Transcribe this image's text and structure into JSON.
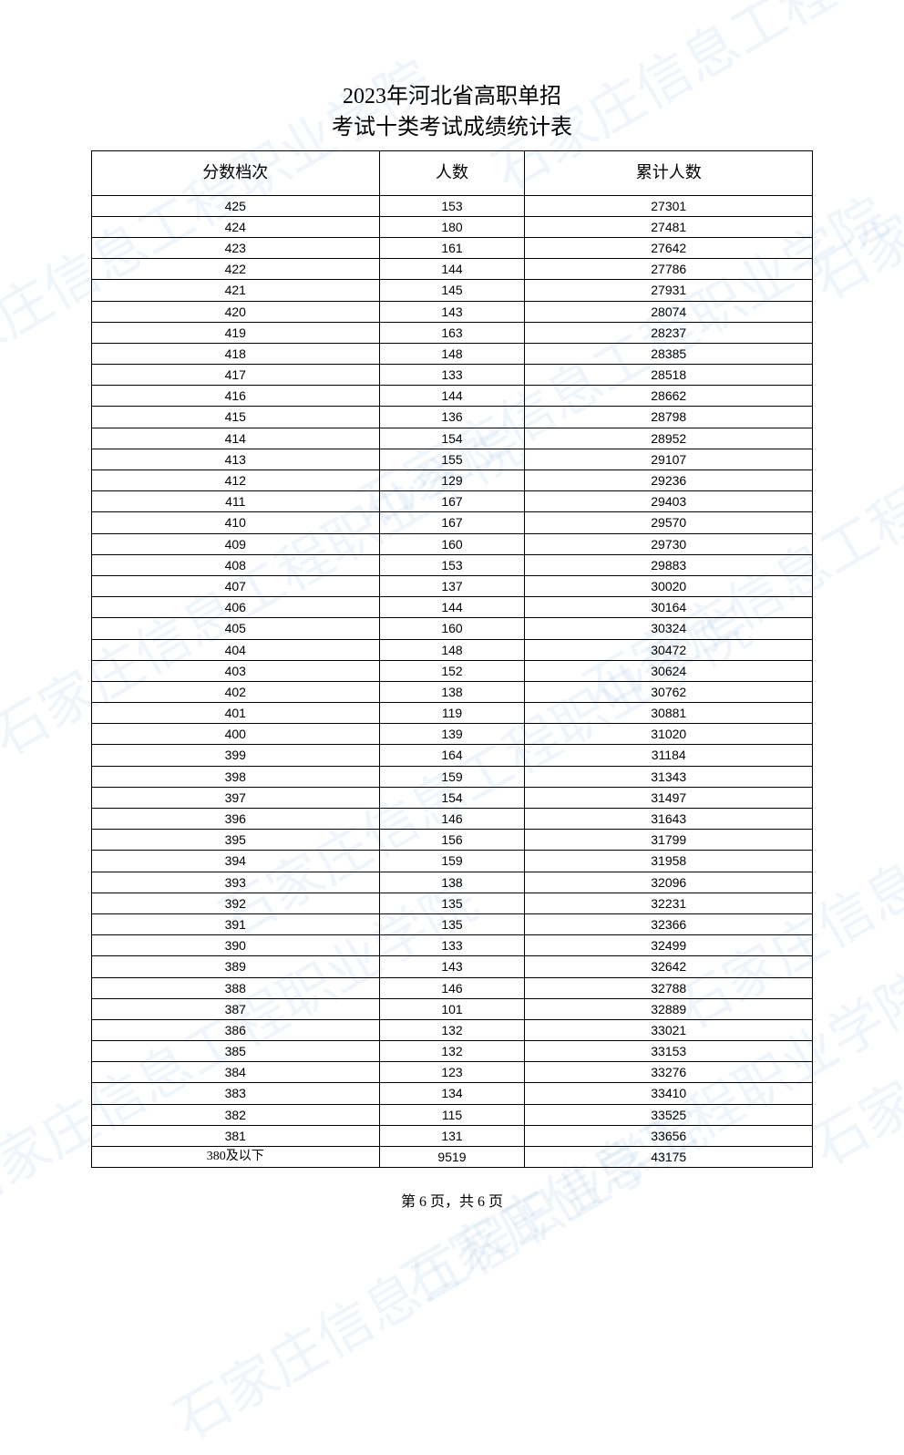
{
  "title_line1": "2023年河北省高职单招",
  "title_line2": "考试十类考试成绩统计表",
  "columns": [
    "分数档次",
    "人数",
    "累计人数"
  ],
  "rows": [
    [
      "425",
      "153",
      "27301"
    ],
    [
      "424",
      "180",
      "27481"
    ],
    [
      "423",
      "161",
      "27642"
    ],
    [
      "422",
      "144",
      "27786"
    ],
    [
      "421",
      "145",
      "27931"
    ],
    [
      "420",
      "143",
      "28074"
    ],
    [
      "419",
      "163",
      "28237"
    ],
    [
      "418",
      "148",
      "28385"
    ],
    [
      "417",
      "133",
      "28518"
    ],
    [
      "416",
      "144",
      "28662"
    ],
    [
      "415",
      "136",
      "28798"
    ],
    [
      "414",
      "154",
      "28952"
    ],
    [
      "413",
      "155",
      "29107"
    ],
    [
      "412",
      "129",
      "29236"
    ],
    [
      "411",
      "167",
      "29403"
    ],
    [
      "410",
      "167",
      "29570"
    ],
    [
      "409",
      "160",
      "29730"
    ],
    [
      "408",
      "153",
      "29883"
    ],
    [
      "407",
      "137",
      "30020"
    ],
    [
      "406",
      "144",
      "30164"
    ],
    [
      "405",
      "160",
      "30324"
    ],
    [
      "404",
      "148",
      "30472"
    ],
    [
      "403",
      "152",
      "30624"
    ],
    [
      "402",
      "138",
      "30762"
    ],
    [
      "401",
      "119",
      "30881"
    ],
    [
      "400",
      "139",
      "31020"
    ],
    [
      "399",
      "164",
      "31184"
    ],
    [
      "398",
      "159",
      "31343"
    ],
    [
      "397",
      "154",
      "31497"
    ],
    [
      "396",
      "146",
      "31643"
    ],
    [
      "395",
      "156",
      "31799"
    ],
    [
      "394",
      "159",
      "31958"
    ],
    [
      "393",
      "138",
      "32096"
    ],
    [
      "392",
      "135",
      "32231"
    ],
    [
      "391",
      "135",
      "32366"
    ],
    [
      "390",
      "133",
      "32499"
    ],
    [
      "389",
      "143",
      "32642"
    ],
    [
      "388",
      "146",
      "32788"
    ],
    [
      "387",
      "101",
      "32889"
    ],
    [
      "386",
      "132",
      "33021"
    ],
    [
      "385",
      "132",
      "33153"
    ],
    [
      "384",
      "123",
      "33276"
    ],
    [
      "383",
      "134",
      "33410"
    ],
    [
      "382",
      "115",
      "33525"
    ],
    [
      "381",
      "131",
      "33656"
    ],
    [
      "380及以下",
      "9519",
      "43175"
    ]
  ],
  "footer": "第 6 页，共 6 页",
  "watermark_text": "石家庄信息工程职业学院",
  "watermark_color": "rgba(150,190,220,0.15)",
  "table": {
    "border_color": "#000000",
    "header_fontsize": 18,
    "cell_fontsize": 14
  },
  "background_color": "#ffffff"
}
